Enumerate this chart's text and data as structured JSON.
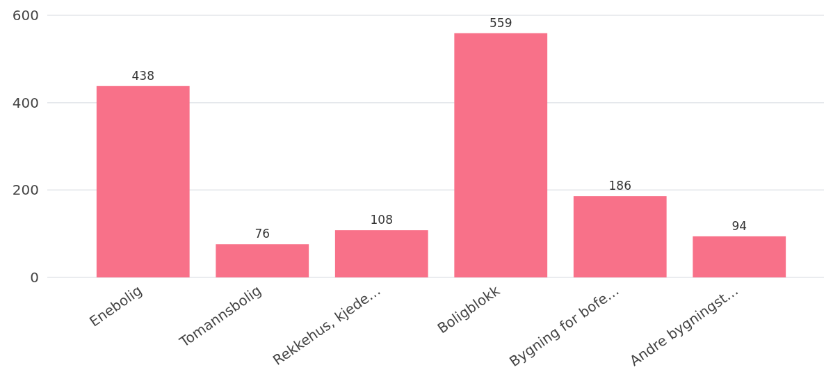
{
  "chart_data": {
    "type": "bar",
    "categories": [
      "Enebolig",
      "Tomannsbolig",
      "Rekkehus, kjede…",
      "Boligblokk",
      "Bygning for bofe…",
      "Andre bygningst…"
    ],
    "values": [
      438,
      76,
      108,
      559,
      186,
      94
    ],
    "color": "#f87189",
    "ylim": [
      0,
      600
    ],
    "yticks": [
      0,
      200,
      400,
      600
    ],
    "grid": "y",
    "data_labels": true
  }
}
